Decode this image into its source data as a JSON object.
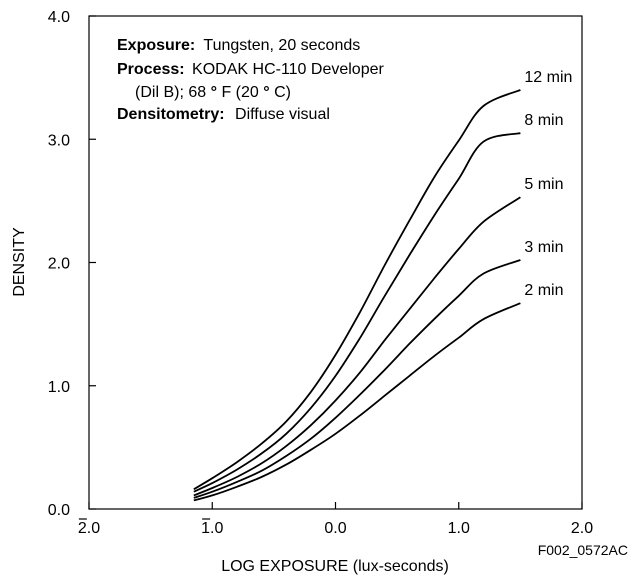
{
  "chart_data": {
    "type": "line",
    "xlabel": "LOG EXPOSURE (lux-seconds)",
    "ylabel": "DENSITY",
    "xlim": [
      -2.0,
      2.0
    ],
    "ylim": [
      0.0,
      4.0
    ],
    "x_ticks": [
      -2.0,
      -1.0,
      0.0,
      1.0,
      2.0
    ],
    "x_tick_labels": [
      "2.0",
      "1.0",
      "0.0",
      "1.0",
      "2.0"
    ],
    "x_tick_bars": [
      true,
      true,
      false,
      false,
      false
    ],
    "y_ticks": [
      0.0,
      1.0,
      2.0,
      3.0,
      4.0
    ],
    "y_tick_labels": [
      "0.0",
      "1.0",
      "2.0",
      "3.0",
      "4.0"
    ],
    "grid": false,
    "annotation": {
      "exposure_label": "Exposure:",
      "exposure_value": "Tungsten, 20 seconds",
      "process_label": "Process:",
      "process_value": "KODAK HC-110 Developer",
      "process_value_2a": "(Dil B); 68",
      "process_value_2b": "F (20",
      "process_value_2c": "C)",
      "degree_symbol": "°",
      "densitometry_label": "Densitometry:",
      "densitometry_value": "Diffuse visual"
    },
    "figure_id": "F002_0572AC",
    "series": [
      {
        "name": "12 min",
        "x": [
          -1.15,
          -1.0,
          -0.8,
          -0.6,
          -0.4,
          -0.2,
          0.0,
          0.2,
          0.4,
          0.6,
          0.8,
          1.0,
          1.2,
          1.5
        ],
        "y": [
          0.16,
          0.25,
          0.38,
          0.53,
          0.71,
          0.95,
          1.25,
          1.6,
          1.98,
          2.34,
          2.69,
          2.99,
          3.27,
          3.4
        ]
      },
      {
        "name": "8 min",
        "x": [
          -1.15,
          -1.0,
          -0.8,
          -0.6,
          -0.4,
          -0.2,
          0.0,
          0.2,
          0.4,
          0.6,
          0.8,
          1.0,
          1.2,
          1.5
        ],
        "y": [
          0.14,
          0.21,
          0.32,
          0.45,
          0.61,
          0.82,
          1.08,
          1.39,
          1.73,
          2.06,
          2.38,
          2.68,
          2.98,
          3.05
        ]
      },
      {
        "name": "5 min",
        "x": [
          -1.15,
          -1.0,
          -0.8,
          -0.6,
          -0.4,
          -0.2,
          0.0,
          0.2,
          0.4,
          0.6,
          0.8,
          1.0,
          1.2,
          1.5
        ],
        "y": [
          0.11,
          0.17,
          0.26,
          0.37,
          0.51,
          0.68,
          0.88,
          1.11,
          1.37,
          1.62,
          1.87,
          2.11,
          2.33,
          2.53
        ]
      },
      {
        "name": "3 min",
        "x": [
          -1.15,
          -1.0,
          -0.8,
          -0.6,
          -0.4,
          -0.2,
          0.0,
          0.2,
          0.4,
          0.6,
          0.8,
          1.0,
          1.2,
          1.5
        ],
        "y": [
          0.09,
          0.14,
          0.22,
          0.31,
          0.43,
          0.57,
          0.74,
          0.93,
          1.13,
          1.34,
          1.54,
          1.73,
          1.91,
          2.02
        ]
      },
      {
        "name": "2 min",
        "x": [
          -1.15,
          -1.0,
          -0.8,
          -0.6,
          -0.4,
          -0.2,
          0.0,
          0.2,
          0.4,
          0.6,
          0.8,
          1.0,
          1.2,
          1.5
        ],
        "y": [
          0.07,
          0.11,
          0.18,
          0.26,
          0.36,
          0.48,
          0.61,
          0.76,
          0.92,
          1.08,
          1.24,
          1.39,
          1.54,
          1.67
        ]
      }
    ]
  }
}
